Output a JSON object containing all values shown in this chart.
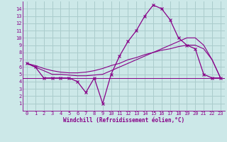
{
  "xlabel": "Windchill (Refroidissement éolien,°C)",
  "background_color": "#cce8e8",
  "grid_color": "#aacccc",
  "line_color": "#880088",
  "x_hours": [
    0,
    1,
    2,
    3,
    4,
    5,
    6,
    7,
    8,
    9,
    10,
    11,
    12,
    13,
    14,
    15,
    16,
    17,
    18,
    19,
    20,
    21,
    22,
    23
  ],
  "y_main": [
    6.5,
    6.0,
    4.5,
    4.5,
    4.5,
    4.5,
    4.0,
    2.5,
    4.5,
    1.0,
    5.0,
    7.5,
    9.5,
    11.0,
    13.0,
    14.5,
    14.0,
    12.5,
    10.0,
    9.0,
    8.5,
    5.0,
    4.5,
    4.5
  ],
  "y_trend1": [
    6.5,
    6.0,
    5.5,
    5.0,
    5.0,
    4.9,
    4.8,
    4.8,
    4.9,
    5.0,
    5.5,
    6.0,
    6.5,
    7.0,
    7.5,
    8.0,
    8.5,
    9.0,
    9.5,
    10.0,
    10.0,
    9.0,
    7.0,
    4.5
  ],
  "y_trend2": [
    6.5,
    6.2,
    5.8,
    5.5,
    5.3,
    5.2,
    5.2,
    5.3,
    5.5,
    5.8,
    6.2,
    6.5,
    7.0,
    7.3,
    7.7,
    8.0,
    8.3,
    8.5,
    8.8,
    9.0,
    9.0,
    8.5,
    7.0,
    4.5
  ],
  "ylim": [
    0,
    15
  ],
  "xlim": [
    -0.5,
    23.5
  ],
  "yticks": [
    1,
    2,
    3,
    4,
    5,
    6,
    7,
    8,
    9,
    10,
    11,
    12,
    13,
    14
  ],
  "xticks": [
    0,
    1,
    2,
    3,
    4,
    5,
    6,
    7,
    8,
    9,
    10,
    11,
    12,
    13,
    14,
    15,
    16,
    17,
    18,
    19,
    20,
    21,
    22,
    23
  ],
  "tick_fontsize": 5,
  "xlabel_fontsize": 5.5
}
